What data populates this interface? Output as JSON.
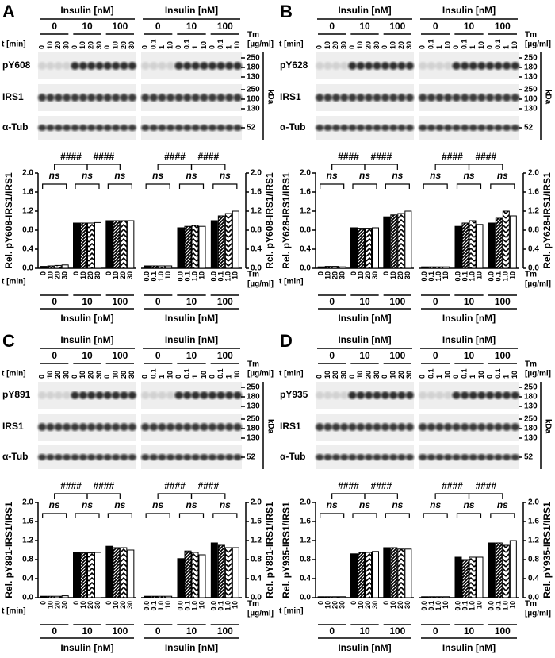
{
  "panels": [
    {
      "letter": "A",
      "blot": {
        "insulin_label": "Insulin [nM]",
        "time_label": "t [min]",
        "tm_label": [
          "Tm",
          "[µg/ml]"
        ],
        "insulin_levels": [
          "0",
          "10",
          "100"
        ],
        "left_lanes": [
          "0",
          "10",
          "20",
          "30"
        ],
        "right_lanes": [
          "0",
          "0.1",
          "1",
          "10"
        ],
        "kda": "kDa",
        "rows": [
          {
            "name": "pY608",
            "markers": [
              "250",
              "180",
              "130"
            ]
          },
          {
            "name": "IRS1",
            "markers": [
              "250",
              "180",
              "130"
            ]
          },
          {
            "name": "α-Tub",
            "markers": [
              "52"
            ]
          }
        ]
      }
    },
    {
      "letter": "B",
      "blot": {
        "insulin_label": "Insulin [nM]",
        "time_label": "t [min]",
        "tm_label": [
          "Tm",
          "[µg/ml]"
        ],
        "insulin_levels": [
          "0",
          "10",
          "100"
        ],
        "left_lanes": [
          "0",
          "10",
          "20",
          "30"
        ],
        "right_lanes": [
          "0",
          "0.1",
          "1",
          "10"
        ],
        "kda": "kDa",
        "rows": [
          {
            "name": "pY628",
            "markers": [
              "250",
              "180",
              "130"
            ]
          },
          {
            "name": "IRS1",
            "markers": [
              "250",
              "180",
              "130"
            ]
          },
          {
            "name": "α-Tub",
            "markers": [
              "52"
            ]
          }
        ]
      }
    },
    {
      "letter": "C",
      "blot": {
        "insulin_label": "Insulin [nM]",
        "time_label": "t [min]",
        "tm_label": [
          "Tm",
          "[µg/ml]"
        ],
        "insulin_levels": [
          "0",
          "10",
          "100"
        ],
        "left_lanes": [
          "0",
          "10",
          "20",
          "30"
        ],
        "right_lanes": [
          "0",
          "0.1",
          "1",
          "10"
        ],
        "kda": "kDa",
        "rows": [
          {
            "name": "pY891",
            "markers": [
              "250",
              "180",
              "130"
            ]
          },
          {
            "name": "IRS1",
            "markers": [
              "250",
              "180",
              "130"
            ]
          },
          {
            "name": "α-Tub",
            "markers": [
              "52"
            ]
          }
        ]
      }
    },
    {
      "letter": "D",
      "blot": {
        "insulin_label": "Insulin [nM]",
        "time_label": "t [min]",
        "tm_label": [
          "Tm",
          "[µg/ml]"
        ],
        "insulin_levels": [
          "0",
          "10",
          "100"
        ],
        "left_lanes": [
          "0",
          "10",
          "20",
          "30"
        ],
        "right_lanes": [
          "0",
          "0.1",
          "1",
          "10"
        ],
        "kda": "kDa",
        "rows": [
          {
            "name": "pY935",
            "markers": [
              "250",
              "180",
              "130"
            ]
          },
          {
            "name": "IRS1",
            "markers": [
              "250",
              "180",
              "130"
            ]
          },
          {
            "name": "α-Tub",
            "markers": [
              "52"
            ]
          }
        ]
      }
    }
  ],
  "chart_data": [
    {
      "type": "bar",
      "axis_side": "left",
      "y_label": "Rel. pY608-IRS1/IRS1",
      "x_title": [
        "t [min]"
      ],
      "group_title": "Insulin [nM]",
      "groups": [
        "0",
        "10",
        "100"
      ],
      "series": [
        {
          "name": "0",
          "color": "#000000",
          "pattern": "solid",
          "values": [
            0.04,
            0.95,
            1.0
          ]
        },
        {
          "name": "10",
          "color": "#000000",
          "pattern": "hatch",
          "values": [
            0.05,
            0.95,
            1.0
          ]
        },
        {
          "name": "20",
          "color": "#000000",
          "pattern": "zigzag",
          "values": [
            0.06,
            0.95,
            1.0
          ]
        },
        {
          "name": "30",
          "color": "#000000",
          "pattern": "open",
          "values": [
            0.07,
            0.96,
            1.0
          ]
        }
      ],
      "ylim": [
        0,
        2
      ],
      "yticks": [
        {
          "value": 0,
          "label": "0.0"
        },
        0.4,
        0.8,
        1.2,
        1.6,
        {
          "value": 2,
          "label": "2.0"
        }
      ],
      "significance": {
        "between": [
          "####",
          "####"
        ],
        "within": [
          "ns",
          "ns",
          "ns"
        ]
      }
    },
    {
      "type": "bar",
      "axis_side": "right",
      "y_label": "Rel. pY608-IRS1/IRS1",
      "x_title": [
        "Tm",
        "[µg/ml]"
      ],
      "group_title": "Insulin [nM]",
      "groups": [
        "0",
        "10",
        "100"
      ],
      "series": [
        {
          "name": "0.0",
          "color": "#000000",
          "pattern": "solid",
          "values": [
            0.05,
            0.85,
            1.0
          ]
        },
        {
          "name": "0.1",
          "color": "#000000",
          "pattern": "hatch",
          "values": [
            0.05,
            0.88,
            1.1
          ]
        },
        {
          "name": "1.0",
          "color": "#000000",
          "pattern": "zigzag",
          "values": [
            0.05,
            0.9,
            1.15
          ]
        },
        {
          "name": "10",
          "color": "#000000",
          "pattern": "open",
          "values": [
            0.05,
            0.88,
            1.2
          ]
        }
      ],
      "ylim": [
        0,
        2
      ],
      "yticks": [
        {
          "value": 0,
          "label": "0.0"
        },
        0.4,
        0.8,
        1.2,
        1.6,
        {
          "value": 2,
          "label": "2.0"
        }
      ],
      "significance": {
        "between": [
          "####",
          "####"
        ],
        "within": [
          "ns",
          "ns",
          "ns"
        ]
      }
    },
    {
      "type": "bar",
      "axis_side": "left",
      "y_label": "Rel. pY628-IRS1/IRS1",
      "x_title": [
        "t [min]"
      ],
      "group_title": "Insulin [nM]",
      "groups": [
        "0",
        "10",
        "100"
      ],
      "series": [
        {
          "name": "0",
          "color": "#000000",
          "pattern": "solid",
          "values": [
            0.03,
            0.85,
            1.08
          ]
        },
        {
          "name": "10",
          "color": "#000000",
          "pattern": "hatch",
          "values": [
            0.04,
            0.84,
            1.12
          ]
        },
        {
          "name": "20",
          "color": "#000000",
          "pattern": "zigzag",
          "values": [
            0.04,
            0.84,
            1.15
          ]
        },
        {
          "name": "30",
          "color": "#000000",
          "pattern": "open",
          "values": [
            0.03,
            0.85,
            1.2
          ]
        }
      ],
      "ylim": [
        0,
        2
      ],
      "yticks": [
        {
          "value": 0,
          "label": "0.0"
        },
        0.4,
        0.8,
        1.2,
        1.6,
        {
          "value": 2,
          "label": "2.0"
        }
      ],
      "significance": {
        "between": [
          "####",
          "####"
        ],
        "within": [
          "ns",
          "ns",
          "ns"
        ]
      }
    },
    {
      "type": "bar",
      "axis_side": "right",
      "y_label": "Rel. pY628-IRS1/IRS1",
      "x_title": [
        "Tm",
        "[µg/ml]"
      ],
      "group_title": "Insulin [nM]",
      "groups": [
        "0",
        "10",
        "100"
      ],
      "series": [
        {
          "name": "0.0",
          "color": "#000000",
          "pattern": "solid",
          "values": [
            0.03,
            0.88,
            0.95
          ]
        },
        {
          "name": "0.1",
          "color": "#000000",
          "pattern": "hatch",
          "values": [
            0.03,
            0.95,
            1.05
          ]
        },
        {
          "name": "1.0",
          "color": "#000000",
          "pattern": "zigzag",
          "values": [
            0.03,
            1.0,
            1.2
          ]
        },
        {
          "name": "10",
          "color": "#000000",
          "pattern": "open",
          "values": [
            0.03,
            0.92,
            1.1
          ]
        }
      ],
      "ylim": [
        0,
        2
      ],
      "yticks": [
        {
          "value": 0,
          "label": "0.0"
        },
        0.4,
        0.8,
        1.2,
        1.6,
        {
          "value": 2,
          "label": "2.0"
        }
      ],
      "significance": {
        "between": [
          "####",
          "####"
        ],
        "within": [
          "ns",
          "ns",
          "ns"
        ]
      }
    },
    {
      "type": "bar",
      "axis_side": "left",
      "y_label": "Rel. pY891-IRS1/IRS1",
      "x_title": [
        "t [min]"
      ],
      "group_title": "Insulin [nM]",
      "groups": [
        "0",
        "10",
        "100"
      ],
      "series": [
        {
          "name": "0",
          "color": "#000000",
          "pattern": "solid",
          "values": [
            0.03,
            0.95,
            1.08
          ]
        },
        {
          "name": "10",
          "color": "#000000",
          "pattern": "hatch",
          "values": [
            0.03,
            0.94,
            1.05
          ]
        },
        {
          "name": "20",
          "color": "#000000",
          "pattern": "zigzag",
          "values": [
            0.03,
            0.94,
            1.05
          ]
        },
        {
          "name": "30",
          "color": "#000000",
          "pattern": "open",
          "values": [
            0.04,
            0.95,
            1.0
          ]
        }
      ],
      "ylim": [
        0,
        2
      ],
      "yticks": [
        {
          "value": 0,
          "label": "0.0"
        },
        0.4,
        0.8,
        1.2,
        1.6,
        {
          "value": 2,
          "label": "2.0"
        }
      ],
      "significance": {
        "between": [
          "####",
          "####"
        ],
        "within": [
          "ns",
          "ns",
          "ns"
        ]
      }
    },
    {
      "type": "bar",
      "axis_side": "right",
      "y_label": "Rel. pY891-IRS1/IRS1",
      "x_title": [
        "Tm",
        "[µg/ml]"
      ],
      "group_title": "Insulin [nM]",
      "groups": [
        "0",
        "10",
        "100"
      ],
      "series": [
        {
          "name": "0.0",
          "color": "#000000",
          "pattern": "solid",
          "values": [
            0.03,
            0.82,
            1.15
          ]
        },
        {
          "name": "0.1",
          "color": "#000000",
          "pattern": "hatch",
          "values": [
            0.03,
            0.98,
            1.1
          ]
        },
        {
          "name": "1.0",
          "color": "#000000",
          "pattern": "zigzag",
          "values": [
            0.03,
            0.95,
            1.05
          ]
        },
        {
          "name": "10",
          "color": "#000000",
          "pattern": "open",
          "values": [
            0.03,
            0.9,
            1.05
          ]
        }
      ],
      "ylim": [
        0,
        2
      ],
      "yticks": [
        {
          "value": 0,
          "label": "0.0"
        },
        0.4,
        0.8,
        1.2,
        1.6,
        {
          "value": 2,
          "label": "2.0"
        }
      ],
      "significance": {
        "between": [
          "####",
          "####"
        ],
        "within": [
          "ns",
          "ns",
          "ns"
        ]
      }
    },
    {
      "type": "bar",
      "axis_side": "left",
      "y_label": "Rel. pY935-IRS1/IRS1",
      "x_title": [
        "t [min]"
      ],
      "group_title": "Insulin [nM]",
      "groups": [
        "0",
        "10",
        "100"
      ],
      "series": [
        {
          "name": "0",
          "color": "#000000",
          "pattern": "solid",
          "values": [
            0.02,
            0.92,
            1.05
          ]
        },
        {
          "name": "10",
          "color": "#000000",
          "pattern": "hatch",
          "values": [
            0.02,
            0.95,
            1.05
          ]
        },
        {
          "name": "20",
          "color": "#000000",
          "pattern": "zigzag",
          "values": [
            0.02,
            0.95,
            1.02
          ]
        },
        {
          "name": "30",
          "color": "#000000",
          "pattern": "open",
          "values": [
            0.02,
            0.97,
            1.02
          ]
        }
      ],
      "ylim": [
        0,
        2
      ],
      "yticks": [
        {
          "value": 0,
          "label": "0.0"
        },
        0.4,
        0.8,
        1.2,
        1.6,
        {
          "value": 2,
          "label": "2.0"
        }
      ],
      "significance": {
        "between": [
          "####",
          "####"
        ],
        "within": [
          "ns",
          "ns",
          "ns"
        ]
      }
    },
    {
      "type": "bar",
      "axis_side": "right",
      "y_label": "Rel. pY935-IRS1/IRS1",
      "x_title": [
        "Tm",
        "[µg/ml]"
      ],
      "group_title": "Insulin [nM]",
      "groups": [
        "0",
        "10",
        "100"
      ],
      "series": [
        {
          "name": "0.0",
          "color": "#000000",
          "pattern": "solid",
          "values": [
            0.02,
            0.85,
            1.15
          ]
        },
        {
          "name": "0.1",
          "color": "#000000",
          "pattern": "hatch",
          "values": [
            0.02,
            0.8,
            1.15
          ]
        },
        {
          "name": "1.0",
          "color": "#000000",
          "pattern": "zigzag",
          "values": [
            0.02,
            0.85,
            1.1
          ]
        },
        {
          "name": "10",
          "color": "#000000",
          "pattern": "open",
          "values": [
            0.02,
            0.85,
            1.2
          ]
        }
      ],
      "ylim": [
        0,
        2
      ],
      "yticks": [
        {
          "value": 0,
          "label": "0.0"
        },
        0.4,
        0.8,
        1.2,
        1.6,
        {
          "value": 2,
          "label": "2.0"
        }
      ],
      "significance": {
        "between": [
          "####",
          "####"
        ],
        "within": [
          "ns",
          "ns",
          "ns"
        ]
      }
    }
  ]
}
